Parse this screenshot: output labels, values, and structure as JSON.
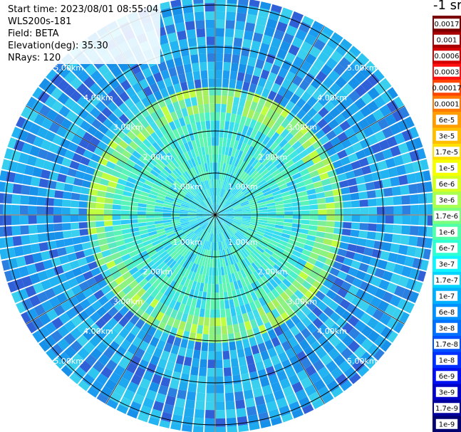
{
  "info": {
    "start_time": "Start time: 2023/08/01 08:55:04",
    "instrument": "WLS200s-181",
    "field": "Field: BETA",
    "elevation": "Elevation(deg): 35.30",
    "nrays": "NRays: 120"
  },
  "unit_label": "-1 sr",
  "colorbar": {
    "labels": [
      "0.0017",
      "0.001",
      "0.0006",
      "0.0003",
      "0.00017",
      "0.0001",
      "6e-5",
      "3e-5",
      "1.7e-5",
      "1e-5",
      "6e-6",
      "3e-6",
      "1.7e-6",
      "1e-6",
      "6e-7",
      "3e-7",
      "1.7e-7",
      "1e-7",
      "6e-8",
      "3e-8",
      "1.7e-8",
      "1e-8",
      "6e-9",
      "3e-9",
      "1.7e-9",
      "1e-9"
    ],
    "colors": [
      "#7a0000",
      "#a80000",
      "#d40000",
      "#ff1010",
      "#ff4400",
      "#ff7800",
      "#ff9c00",
      "#ffbe00",
      "#ffe000",
      "#f6ff00",
      "#d4ff20",
      "#a8ff50",
      "#7cff7c",
      "#50ffa8",
      "#30ffd4",
      "#10f4ff",
      "#00d4ff",
      "#00b0ff",
      "#0090ff",
      "#0070ff",
      "#0050ff",
      "#0030ff",
      "#0010f0",
      "#0000c8",
      "#00009c",
      "#000070"
    ]
  },
  "chart_data": {
    "type": "heatmap",
    "projection": "polar",
    "n_rays": 120,
    "range_rings_km": [
      1,
      2,
      3,
      4,
      5
    ],
    "ring_labels": [
      "1.00km",
      "2.00km",
      "3.00km",
      "4.00km",
      "5.00km"
    ],
    "max_range_km": 5.2,
    "spokes_deg": [
      0,
      30,
      60,
      90,
      120,
      150,
      180,
      210,
      240,
      270,
      300,
      330
    ],
    "value_bands": [
      {
        "range_km": [
          0.0,
          0.9
        ],
        "typical_value": "1e-7"
      },
      {
        "range_km": [
          0.9,
          2.5
        ],
        "typical_value": "3e-7"
      },
      {
        "range_km": [
          2.5,
          3.0
        ],
        "typical_value": "1.7e-6"
      },
      {
        "range_km": [
          3.0,
          5.2
        ],
        "typical_value": "6e-8"
      }
    ]
  }
}
